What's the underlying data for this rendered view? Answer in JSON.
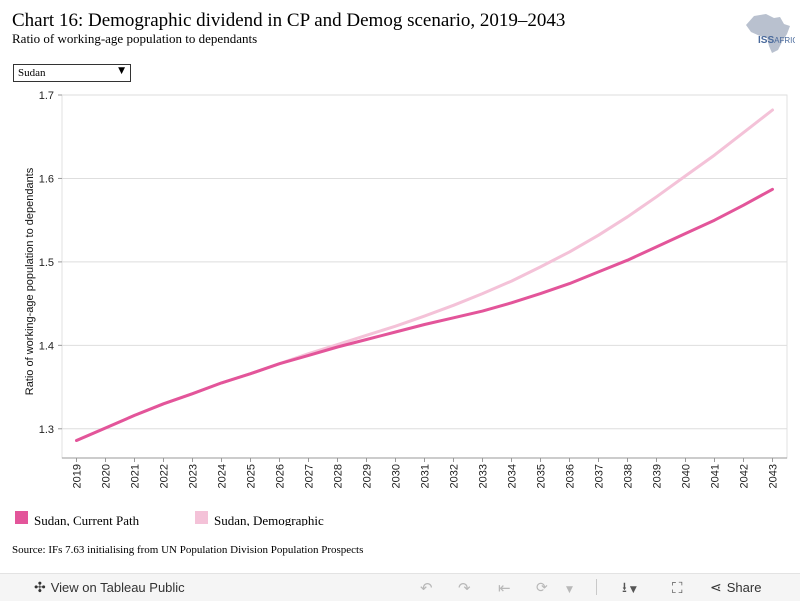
{
  "header": {
    "title": "Chart 16: Demographic dividend in CP and Demog scenario, 2019–2043",
    "subtitle": "Ratio of working-age population to dependants",
    "logo_text": "ISS AFRICA"
  },
  "filter": {
    "selected": "Sudan"
  },
  "chart_data": {
    "type": "line",
    "title": "Chart 16: Demographic dividend in CP and Demog scenario, 2019–2043",
    "subtitle": "Ratio of working-age population to dependants",
    "xlabel": "",
    "ylabel": "Ratio of working-age population to dependants",
    "x": [
      "2019",
      "2020",
      "2021",
      "2022",
      "2023",
      "2024",
      "2025",
      "2026",
      "2027",
      "2028",
      "2029",
      "2030",
      "2031",
      "2032",
      "2033",
      "2034",
      "2035",
      "2036",
      "2037",
      "2038",
      "2039",
      "2040",
      "2041",
      "2042",
      "2043"
    ],
    "ylim": [
      1.265,
      1.7
    ],
    "yticks": [
      1.3,
      1.4,
      1.5,
      1.6,
      1.7
    ],
    "ytick_labels": [
      "1.3",
      "1.4",
      "1.5",
      "1.6",
      "1.7"
    ],
    "grid": "horizontal",
    "legend_position": "bottom-left",
    "series": [
      {
        "name": "Sudan, Current Path",
        "color": "#e3559a",
        "values": [
          1.286,
          1.301,
          1.316,
          1.33,
          1.342,
          1.355,
          1.366,
          1.378,
          1.388,
          1.398,
          1.407,
          1.416,
          1.425,
          1.433,
          1.441,
          1.451,
          1.462,
          1.474,
          1.488,
          1.502,
          1.518,
          1.534,
          1.55,
          1.568,
          1.587
        ]
      },
      {
        "name": "Sudan, Demographic",
        "color": "#f4c2d8",
        "values": [
          1.286,
          1.301,
          1.316,
          1.33,
          1.342,
          1.355,
          1.366,
          1.378,
          1.39,
          1.401,
          1.412,
          1.423,
          1.435,
          1.448,
          1.462,
          1.477,
          1.494,
          1.512,
          1.532,
          1.554,
          1.578,
          1.603,
          1.628,
          1.655,
          1.682
        ]
      }
    ]
  },
  "legend": [
    {
      "label": "Sudan, Current Path",
      "color": "#e3559a"
    },
    {
      "label": "Sudan, Demographic",
      "color": "#f4c2d8"
    }
  ],
  "source": "Source: IFs 7.63 initialising from UN Population Division Population Prospects",
  "toolbar": {
    "view_label": "View on Tableau Public",
    "share_label": "Share"
  }
}
